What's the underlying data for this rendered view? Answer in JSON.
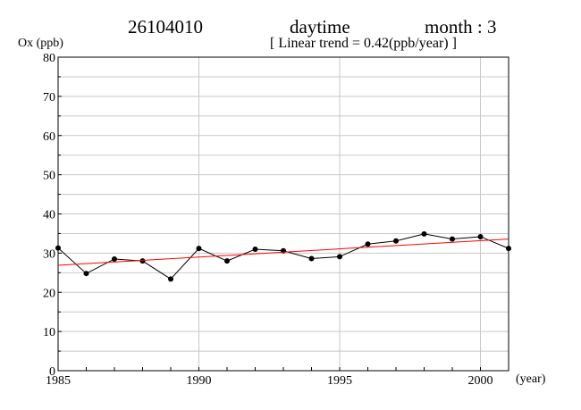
{
  "header": {
    "station": "26104010",
    "period": "daytime",
    "month": "month : 3",
    "trend": "[ Linear trend = 0.42(ppb/year) ]"
  },
  "chart_data": {
    "type": "line",
    "title": "",
    "xlabel": "(year)",
    "ylabel": "Ox (ppb)",
    "xlim": [
      1985,
      2001
    ],
    "ylim": [
      0,
      80
    ],
    "x_ticks": [
      1985,
      1990,
      1995,
      2000
    ],
    "y_ticks": [
      0,
      10,
      20,
      30,
      40,
      50,
      60,
      70,
      80
    ],
    "grid": true,
    "series": [
      {
        "x": [
          1985,
          1986,
          1987,
          1988,
          1989,
          1990,
          1991,
          1992,
          1993,
          1994,
          1995,
          1996,
          1997,
          1998,
          1999,
          2000,
          2001
        ],
        "values": [
          31.3,
          24.8,
          28.5,
          28.0,
          23.4,
          31.2,
          28.0,
          31.0,
          30.6,
          28.6,
          29.1,
          32.3,
          33.1,
          34.9,
          33.6,
          34.2,
          31.2
        ],
        "color": "#000000"
      },
      {
        "x": [
          1985,
          2001
        ],
        "values": [
          26.9,
          33.6
        ],
        "color": "#ff0000"
      }
    ]
  }
}
